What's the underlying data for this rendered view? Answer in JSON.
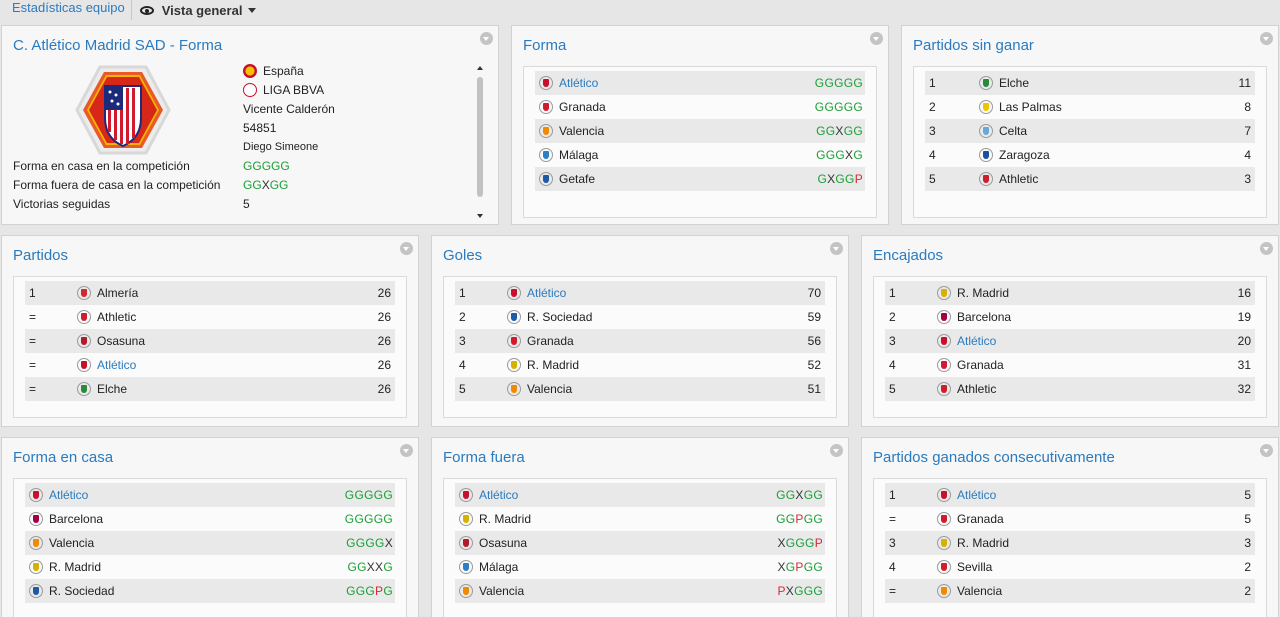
{
  "topbar": {
    "tab_label": "Estadísticas equipo",
    "view_label": "Vista general"
  },
  "profile": {
    "title": "C. Atlético Madrid SAD - Forma",
    "country": "España",
    "league": "LIGA BBVA",
    "stadium": "Vicente Calderón",
    "capacity": "54851",
    "manager": "Diego Simeone",
    "labels": {
      "home_form": "Forma en casa en la competición",
      "away_form": "Forma fuera de casa en la competición",
      "streak": "Victorias seguidas"
    },
    "home_form": "GGGGG",
    "away_form": "GGXGG",
    "streak": "5"
  },
  "forma": {
    "title": "Forma",
    "rows": [
      {
        "name": "Atlético",
        "form": "GGGGG",
        "hl": true,
        "color": "#c8102e"
      },
      {
        "name": "Granada",
        "form": "GGGGG",
        "hl": false,
        "color": "#d21a2e"
      },
      {
        "name": "Valencia",
        "form": "GGXGG",
        "hl": false,
        "color": "#f08a00"
      },
      {
        "name": "Málaga",
        "form": "GGGXG",
        "hl": false,
        "color": "#2c7fc8"
      },
      {
        "name": "Getafe",
        "form": "GXGGP",
        "hl": false,
        "color": "#1d5aa8"
      }
    ]
  },
  "sin_ganar": {
    "title": "Partidos sin ganar",
    "rows": [
      {
        "rank": "1",
        "name": "Elche",
        "val": "11",
        "color": "#2a8a3a"
      },
      {
        "rank": "2",
        "name": "Las Palmas",
        "val": "8",
        "color": "#f2c200"
      },
      {
        "rank": "3",
        "name": "Celta",
        "val": "7",
        "color": "#6aa8d8"
      },
      {
        "rank": "4",
        "name": "Zaragoza",
        "val": "4",
        "color": "#1d4fa0"
      },
      {
        "rank": "5",
        "name": "Athletic",
        "val": "3",
        "color": "#cc1f2e"
      }
    ]
  },
  "partidos": {
    "title": "Partidos",
    "rows": [
      {
        "rank": "1",
        "name": "Almería",
        "val": "26",
        "hl": false,
        "color": "#d2272e"
      },
      {
        "rank": "=",
        "name": "Athletic",
        "val": "26",
        "hl": false,
        "color": "#cc1f2e"
      },
      {
        "rank": "=",
        "name": "Osasuna",
        "val": "26",
        "hl": false,
        "color": "#b01c2c"
      },
      {
        "rank": "=",
        "name": "Atlético",
        "val": "26",
        "hl": true,
        "color": "#c8102e"
      },
      {
        "rank": "=",
        "name": "Elche",
        "val": "26",
        "hl": false,
        "color": "#2a8a3a"
      }
    ]
  },
  "goles": {
    "title": "Goles",
    "rows": [
      {
        "rank": "1",
        "name": "Atlético",
        "val": "70",
        "hl": true,
        "color": "#c8102e"
      },
      {
        "rank": "2",
        "name": "R. Sociedad",
        "val": "59",
        "hl": false,
        "color": "#1d5aa8"
      },
      {
        "rank": "3",
        "name": "Granada",
        "val": "56",
        "hl": false,
        "color": "#d21a2e"
      },
      {
        "rank": "4",
        "name": "R. Madrid",
        "val": "52",
        "hl": false,
        "color": "#d8b000"
      },
      {
        "rank": "5",
        "name": "Valencia",
        "val": "51",
        "hl": false,
        "color": "#f08a00"
      }
    ]
  },
  "encajados": {
    "title": "Encajados",
    "rows": [
      {
        "rank": "1",
        "name": "R. Madrid",
        "val": "16",
        "hl": false,
        "color": "#d8b000"
      },
      {
        "rank": "2",
        "name": "Barcelona",
        "val": "19",
        "hl": false,
        "color": "#a50044"
      },
      {
        "rank": "3",
        "name": "Atlético",
        "val": "20",
        "hl": true,
        "color": "#c8102e"
      },
      {
        "rank": "4",
        "name": "Granada",
        "val": "31",
        "hl": false,
        "color": "#d21a2e"
      },
      {
        "rank": "5",
        "name": "Athletic",
        "val": "32",
        "hl": false,
        "color": "#cc1f2e"
      }
    ]
  },
  "forma_casa": {
    "title": "Forma en casa",
    "rows": [
      {
        "name": "Atlético",
        "form": "GGGGG",
        "hl": true,
        "color": "#c8102e"
      },
      {
        "name": "Barcelona",
        "form": "GGGGG",
        "hl": false,
        "color": "#a50044"
      },
      {
        "name": "Valencia",
        "form": "GGGGX",
        "hl": false,
        "color": "#f08a00"
      },
      {
        "name": "R. Madrid",
        "form": "GGXXG",
        "hl": false,
        "color": "#d8b000"
      },
      {
        "name": "R. Sociedad",
        "form": "GGGPG",
        "hl": false,
        "color": "#1d5aa8"
      }
    ]
  },
  "forma_fuera": {
    "title": "Forma fuera",
    "rows": [
      {
        "name": "Atlético",
        "form": "GGXGG",
        "hl": true,
        "color": "#c8102e"
      },
      {
        "name": "R. Madrid",
        "form": "GGPGG",
        "hl": false,
        "color": "#d8b000"
      },
      {
        "name": "Osasuna",
        "form": "XGGGP",
        "hl": false,
        "color": "#b01c2c"
      },
      {
        "name": "Málaga",
        "form": "XGPGG",
        "hl": false,
        "color": "#2c7fc8"
      },
      {
        "name": "Valencia",
        "form": "PXGGG",
        "hl": false,
        "color": "#f08a00"
      }
    ]
  },
  "consecutivos": {
    "title": "Partidos ganados consecutivamente",
    "rows": [
      {
        "rank": "1",
        "name": "Atlético",
        "val": "5",
        "hl": true,
        "color": "#c8102e"
      },
      {
        "rank": "=",
        "name": "Granada",
        "val": "5",
        "hl": false,
        "color": "#d21a2e"
      },
      {
        "rank": "3",
        "name": "R. Madrid",
        "val": "3",
        "hl": false,
        "color": "#d8b000"
      },
      {
        "rank": "4",
        "name": "Sevilla",
        "val": "2",
        "hl": false,
        "color": "#d01f2a"
      },
      {
        "rank": "=",
        "name": "Valencia",
        "val": "2",
        "hl": false,
        "color": "#f08a00"
      }
    ]
  }
}
